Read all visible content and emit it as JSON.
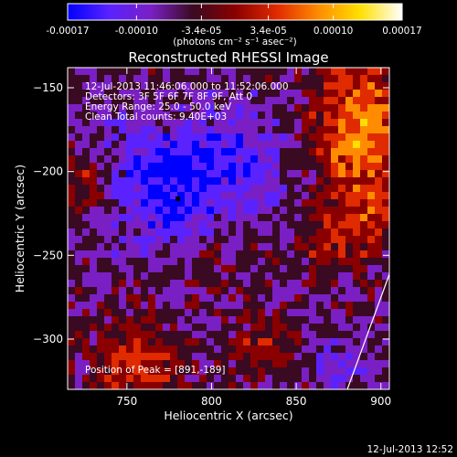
{
  "chart_data": {
    "type": "heatmap",
    "title": "Reconstructed RHESSI Image",
    "xlabel": "Heliocentric X (arcsec)",
    "ylabel": "Heliocentric Y (arcsec)",
    "xlim": [
      715,
      905
    ],
    "ylim": [
      -330,
      -138
    ],
    "x_ticks": [
      750,
      800,
      850,
      900
    ],
    "y_ticks": [
      -150,
      -200,
      -250,
      -300
    ],
    "colorbar": {
      "min": -0.00017,
      "max": 0.00017,
      "tick_values": [
        -0.00017,
        -0.0001,
        -3.4e-05,
        3.4e-05,
        0.0001,
        0.00017
      ],
      "tick_labels": [
        "-0.00017",
        "-0.00010",
        "-3.4e-05",
        "3.4e-05",
        "0.00010",
        "0.00017"
      ],
      "unit_label": "(photons cm⁻² s⁻¹ asec⁻²)",
      "colormap": [
        "#0000ff",
        "#5a22ff",
        "#7a1fc4",
        "#3a0a22",
        "#8a0000",
        "#e02a00",
        "#ff8c00",
        "#ffe000",
        "#ffffff"
      ]
    },
    "info_lines": [
      "12-Jul-2013 11:46:06.000 to 11:52:06.000",
      "Detectors: 3F 5F 6F 7F 8F 9F, Att 0",
      "Energy Range: 25.0 - 50.0 keV",
      "Clean     Total counts: 9.40E+03"
    ],
    "peak_label": "Position of Peak = [891,-189]",
    "peak_position": [
      891,
      -189
    ],
    "grid": false
  },
  "footer": {
    "timestamp": "12-Jul-2013 12:52"
  }
}
